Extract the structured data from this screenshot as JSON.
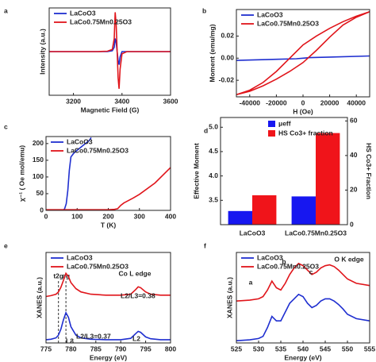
{
  "chart_data": [
    {
      "type": "line",
      "panel_label": "a",
      "x_label": "Magnetic Field (G)",
      "y_label": "Intensity (a.u.)",
      "xlim": [
        3100,
        3600
      ],
      "xticks": [
        3200,
        3400,
        3600
      ],
      "ylim": [
        -1,
        1
      ],
      "series": [
        {
          "name": "LaCoO3",
          "color": "#1f2fd0",
          "x": [
            3100,
            3250,
            3300,
            3340,
            3360,
            3368,
            3372,
            3376,
            3380,
            3384,
            3388,
            3392,
            3400,
            3420,
            3460,
            3520,
            3600
          ],
          "values": [
            0,
            0,
            0,
            0,
            0.02,
            0.1,
            0.3,
            0.2,
            0,
            -0.2,
            -0.3,
            -0.12,
            0,
            0,
            0,
            0,
            0
          ]
        },
        {
          "name": "LaCo0.75Mn0.25O3",
          "color": "#e0151b",
          "x": [
            3100,
            3250,
            3300,
            3340,
            3360,
            3368,
            3372,
            3376,
            3380,
            3384,
            3388,
            3392,
            3400,
            3420,
            3460,
            3520,
            3600
          ],
          "values": [
            0,
            0,
            0,
            0.01,
            0.05,
            0.3,
            0.9,
            0.6,
            0,
            -0.6,
            -0.85,
            -0.4,
            -0.05,
            0,
            0,
            0,
            0
          ]
        }
      ]
    },
    {
      "type": "line",
      "panel_label": "b",
      "x_label": "H (Oe)",
      "y_label": "Moment (emu/mg)",
      "xlim": [
        -50000,
        50000
      ],
      "xticks": [
        -40000,
        -20000,
        0,
        20000,
        40000
      ],
      "ylim": [
        -0.035,
        0.044
      ],
      "yticks": [
        -0.02,
        {
          "value": 0,
          "label": "0.00"
        },
        0.02
      ],
      "series": [
        {
          "name": "LaCoO3",
          "color": "#1f2fd0",
          "x": [
            -50000,
            -20000,
            -5000,
            0,
            5000,
            20000,
            50000
          ],
          "values": [
            -0.002,
            -0.001,
            -0.0005,
            0,
            0.0005,
            0.001,
            0.002
          ]
        },
        {
          "name": "LaCo0.75Mn0.25O3",
          "color": "#e0151b",
          "x": [
            50000,
            40000,
            30000,
            20000,
            10000,
            0,
            -10000,
            -20000,
            -30000,
            -40000,
            -50000,
            -40000,
            -30000,
            -20000,
            -10000,
            0,
            10000,
            20000,
            30000,
            40000,
            50000
          ],
          "values": [
            0.042,
            0.038,
            0.033,
            0.027,
            0.02,
            0.012,
            0,
            -0.012,
            -0.022,
            -0.029,
            -0.033,
            -0.03,
            -0.025,
            -0.019,
            -0.012,
            -0.004,
            0.007,
            0.019,
            0.03,
            0.037,
            0.042
          ]
        }
      ]
    },
    {
      "type": "line",
      "panel_label": "c",
      "x_label": "T (K)",
      "y_label": "χ⁻¹ ( Oe mol/emu)",
      "xlim": [
        0,
        400
      ],
      "xticks": [
        0,
        100,
        200,
        300,
        400
      ],
      "ylim": [
        0,
        221
      ],
      "yticks": [
        0,
        50,
        100,
        150,
        200
      ],
      "series": [
        {
          "name": "LaCoO3",
          "color": "#1f2fd0",
          "x": [
            55,
            60,
            65,
            70,
            75,
            80,
            90,
            100,
            120,
            140,
            145
          ],
          "values": [
            0,
            5,
            20,
            60,
            120,
            160,
            172,
            180,
            195,
            210,
            218
          ]
        },
        {
          "name": "LaCo0.75Mn0.25O3",
          "color": "#e0151b",
          "x": [
            0,
            100,
            200,
            220,
            230,
            240,
            250,
            260,
            280,
            300,
            350,
            400
          ],
          "values": [
            2,
            2,
            2,
            3,
            5,
            15,
            22,
            27,
            37,
            48,
            82,
            128
          ]
        }
      ]
    },
    {
      "type": "bar",
      "panel_label": "d",
      "y_label": "Effective Moment",
      "y2_label": "HS Co3+ Fraction",
      "categories": [
        "LaCoO3",
        "LaCo0.75Mn0.25O3"
      ],
      "ylim": [
        3.0,
        5.2
      ],
      "yticks": [
        3.5,
        {
          "value": 4,
          "label": "4.0"
        },
        4.5,
        {
          "value": 5,
          "label": "5.0"
        }
      ],
      "y2lim": [
        0,
        62
      ],
      "y2ticks": [
        0,
        20,
        40,
        60
      ],
      "series": [
        {
          "name": "μeff",
          "color": "#1717f0",
          "values": [
            3.28,
            3.58
          ]
        },
        {
          "name": "HS Co3+ fraction",
          "color": "#f0141a",
          "values": [
            17,
            53
          ],
          "axis": "y2"
        }
      ]
    },
    {
      "type": "line",
      "panel_label": "e",
      "x_label": "Energy (eV)",
      "y_label": "XANES (a.u.)",
      "xlim": [
        775,
        800
      ],
      "xticks": [
        775,
        780,
        785,
        790,
        795,
        800
      ],
      "ylim": [
        -0.05,
        1.9
      ],
      "markers": [
        {
          "label": "t2g",
          "x": 777.5
        },
        {
          "label": "eg",
          "x": 779
        }
      ],
      "annotations": [
        "Co L edge",
        "L3",
        "L2",
        "L2/L3=0.37",
        "L2/L3=0.38"
      ],
      "series": [
        {
          "name": "LaCoO3",
          "color": "#1f2fd0",
          "x": [
            775,
            776,
            777,
            777.5,
            778,
            778.5,
            779,
            779.5,
            780,
            781,
            782,
            784,
            787,
            790,
            792,
            793,
            793.5,
            794,
            795,
            796,
            798,
            800
          ],
          "values": [
            0.02,
            0.03,
            0.06,
            0.12,
            0.25,
            0.45,
            0.6,
            0.5,
            0.3,
            0.12,
            0.06,
            0.03,
            0.02,
            0.02,
            0.05,
            0.15,
            0.2,
            0.18,
            0.08,
            0.04,
            0.02,
            0.02
          ]
        },
        {
          "name": "LaCo0.75Mn0.25O3",
          "color": "#e0151b",
          "x": [
            775,
            776,
            777,
            777.5,
            778,
            778.5,
            779,
            779.5,
            780,
            781,
            782,
            784,
            787,
            790,
            792,
            793,
            793.5,
            794,
            795,
            796,
            798,
            800
          ],
          "values": [
            0.95,
            0.97,
            1.0,
            1.05,
            1.15,
            1.3,
            1.45,
            1.38,
            1.25,
            1.12,
            1.05,
            1.0,
            0.98,
            0.98,
            1.0,
            1.1,
            1.16,
            1.14,
            1.05,
            1.0,
            0.98,
            0.98
          ]
        }
      ]
    },
    {
      "type": "line",
      "panel_label": "f",
      "x_label": "Energy (eV)",
      "y_label": "XANES (a.u.)",
      "xlim": [
        525,
        555
      ],
      "xticks": [
        525,
        530,
        535,
        540,
        545,
        550,
        555
      ],
      "ylim": [
        -0.05,
        2.0
      ],
      "annotations": [
        "O K edge",
        "a",
        "b",
        "c"
      ],
      "annotation_color": "#f08a1c",
      "series": [
        {
          "name": "LaCoO3",
          "color": "#1f2fd0",
          "x": [
            525,
            528,
            530,
            531,
            532,
            533,
            534,
            535,
            536,
            537,
            538,
            539,
            540,
            541,
            542,
            543,
            544,
            545,
            546,
            547,
            548,
            549,
            550,
            552,
            555
          ],
          "values": [
            0,
            0.02,
            0.05,
            0.1,
            0.3,
            0.55,
            0.45,
            0.45,
            0.65,
            0.85,
            0.95,
            1.05,
            1.0,
            0.85,
            0.75,
            0.8,
            0.9,
            0.95,
            0.95,
            0.9,
            0.82,
            0.72,
            0.6,
            0.5,
            0.45
          ]
        },
        {
          "name": "LaCo0.75Mn0.25O3",
          "color": "#e0151b",
          "x": [
            525,
            528,
            530,
            531,
            532,
            533,
            534,
            535,
            536,
            537,
            538,
            539,
            540,
            541,
            542,
            543,
            544,
            545,
            546,
            547,
            548,
            549,
            550,
            552,
            555
          ],
          "values": [
            0.9,
            0.92,
            0.95,
            1.0,
            1.15,
            1.35,
            1.2,
            1.15,
            1.3,
            1.5,
            1.65,
            1.75,
            1.7,
            1.6,
            1.5,
            1.55,
            1.65,
            1.7,
            1.72,
            1.68,
            1.6,
            1.5,
            1.4,
            1.3,
            1.25
          ]
        }
      ]
    }
  ]
}
